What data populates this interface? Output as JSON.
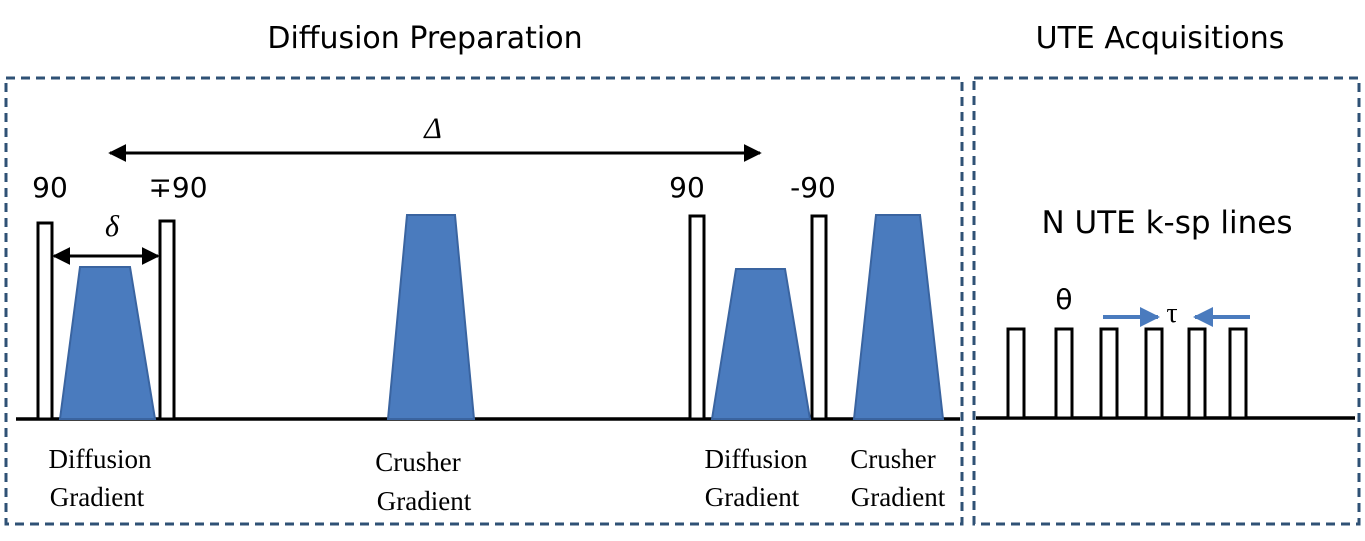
{
  "sections": {
    "diffusion_title": "Diffusion Preparation",
    "ute_title": "UTE Acquisitions"
  },
  "symbols": {
    "big_delta": "Δ",
    "small_delta": "δ",
    "theta": "θ",
    "tau": "τ"
  },
  "pulse_labels": {
    "p1": "90",
    "p2": "∓90",
    "p3": "90",
    "p4": "-90"
  },
  "ute_label": "N UTE k-sp lines",
  "gradient_labels": [
    {
      "line1": "Diffusion",
      "line2": "Gradient"
    },
    {
      "line1": "Crusher",
      "line2": "Gradient"
    },
    {
      "line1": "Diffusion",
      "line2": "Gradient"
    },
    {
      "line1": "Crusher",
      "line2": "Gradient"
    }
  ],
  "colors": {
    "gradient_fill": "#4a7bbe",
    "gradient_stroke": "#3a64a0",
    "frame": "#2f5175",
    "arrow_blue": "#4a7bbe"
  }
}
